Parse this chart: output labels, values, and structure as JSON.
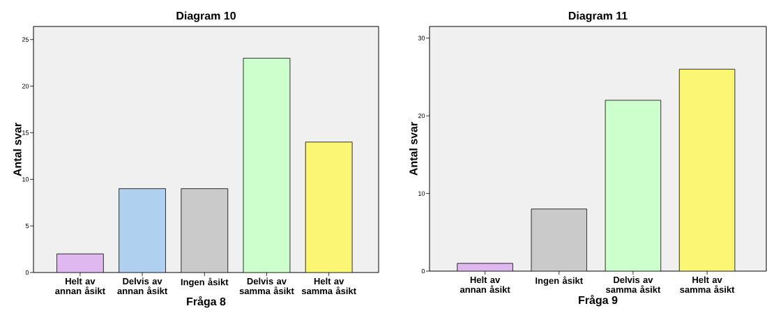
{
  "chart_data": [
    {
      "type": "bar",
      "title": "Diagram 10",
      "xlabel": "Fråga 8",
      "ylabel": "Antal svar",
      "categories": [
        "Helt av annan åsikt",
        "Delvis av annan åsikt",
        "Ingen åsikt",
        "Delvis av samma åsikt",
        "Helt av samma åsikt"
      ],
      "values": [
        2,
        9,
        9,
        23,
        14
      ],
      "colors": [
        "#dfb8f0",
        "#afd0ee",
        "#cacaca",
        "#ccffcc",
        "#fbf674"
      ],
      "ylim": [
        0,
        26.4
      ],
      "yticks": [
        0,
        5,
        10,
        15,
        20,
        25
      ]
    },
    {
      "type": "bar",
      "title": "Diagram 11",
      "xlabel": "Fråga 9",
      "ylabel": "Antal svar",
      "categories": [
        "Helt av annan åsikt",
        "Ingen åsikt",
        "Delvis av samma åsikt",
        "Helt av samma åsikt"
      ],
      "values": [
        1,
        8,
        22,
        26
      ],
      "colors": [
        "#dfb8f0",
        "#cacaca",
        "#ccffcc",
        "#fbf674"
      ],
      "ylim": [
        0,
        31.5
      ],
      "yticks": [
        0,
        10,
        20,
        30
      ]
    }
  ]
}
